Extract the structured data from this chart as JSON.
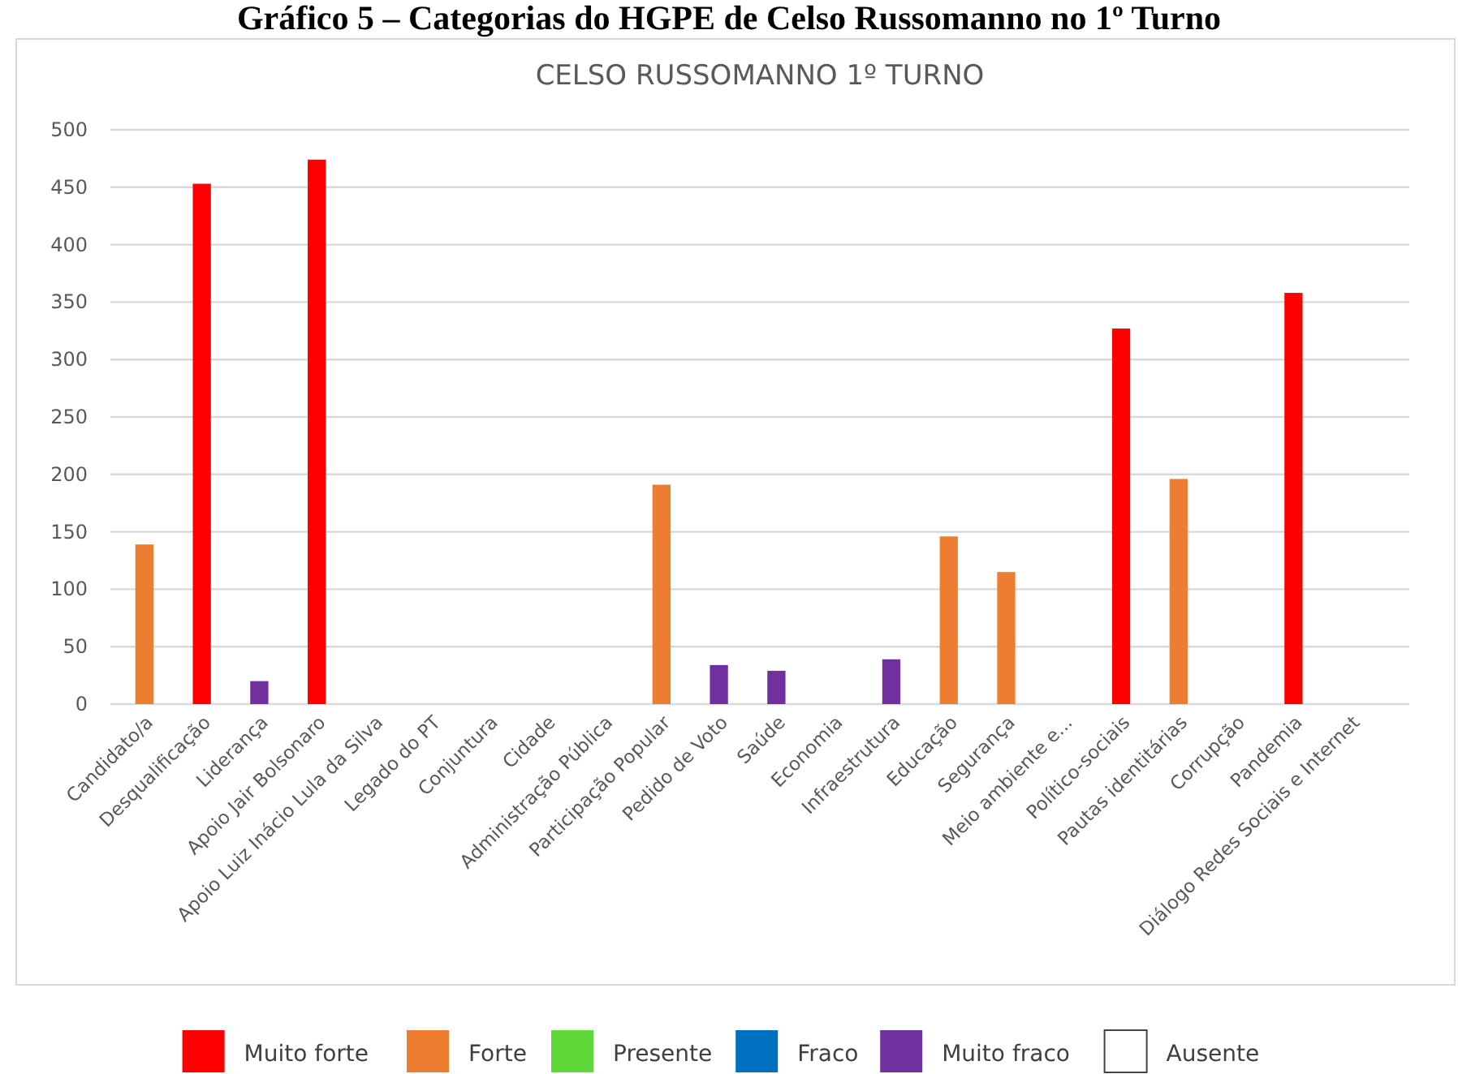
{
  "chart_data": {
    "type": "bar",
    "title": "CELSO RUSSOMANNO 1º TURNO",
    "annotations": [
      "Gráfico 5 – Categorias do HGPE de Celso Russomanno no 1º Turno"
    ],
    "categories": [
      "Candidato/a",
      "Desqualificação",
      "Liderança",
      "Apoio Jair Bolsonaro",
      "Apoio Luiz Inácio Lula da Silva",
      "Legado do PT",
      "Conjuntura",
      "Cidade",
      "Administração Pública",
      "Participação Popular",
      "Pedido de Voto",
      "Saúde",
      "Economia",
      "Infraestrutura",
      "Educação",
      "Segurança",
      "Meio ambiente e...",
      "Político-sociais",
      "Pautas identitárias",
      "Corrupção",
      "Pandemia",
      "Diálogo Redes Sociais e Internet"
    ],
    "stacked": true,
    "series": [
      {
        "name": "Muito forte",
        "color": "#ff0000",
        "values": [
          null,
          453,
          null,
          474,
          null,
          null,
          null,
          null,
          null,
          null,
          null,
          null,
          null,
          null,
          null,
          null,
          null,
          327,
          null,
          null,
          358,
          null
        ]
      },
      {
        "name": "Forte",
        "color": "#ed7d31",
        "values": [
          139,
          null,
          null,
          null,
          null,
          null,
          null,
          null,
          null,
          191,
          null,
          null,
          null,
          null,
          146,
          115,
          null,
          null,
          196,
          null,
          null,
          null
        ]
      },
      {
        "name": "Presente",
        "color": "#5fd83a",
        "values": [
          null,
          null,
          null,
          null,
          null,
          null,
          null,
          null,
          null,
          null,
          null,
          null,
          null,
          null,
          null,
          null,
          null,
          null,
          null,
          null,
          null,
          null
        ]
      },
      {
        "name": "Fraco",
        "color": "#0070c0",
        "values": [
          null,
          null,
          null,
          null,
          null,
          null,
          null,
          null,
          null,
          null,
          null,
          null,
          null,
          null,
          null,
          null,
          null,
          null,
          null,
          null,
          null,
          null
        ]
      },
      {
        "name": "Muito fraco",
        "color": "#7030a0",
        "values": [
          null,
          null,
          20,
          null,
          null,
          null,
          null,
          null,
          null,
          null,
          34,
          29,
          null,
          39,
          null,
          null,
          null,
          null,
          null,
          null,
          null,
          null
        ]
      },
      {
        "name": "Ausente",
        "color": "#ffffff",
        "values": [
          null,
          null,
          null,
          null,
          null,
          null,
          null,
          null,
          null,
          null,
          null,
          null,
          null,
          null,
          null,
          null,
          null,
          null,
          null,
          null,
          null,
          null
        ]
      }
    ],
    "ylim": [
      0,
      500
    ],
    "yticks": [
      0,
      50,
      100,
      150,
      200,
      250,
      300,
      350,
      400,
      450,
      500
    ],
    "grid": "y",
    "legend": "bottom"
  }
}
